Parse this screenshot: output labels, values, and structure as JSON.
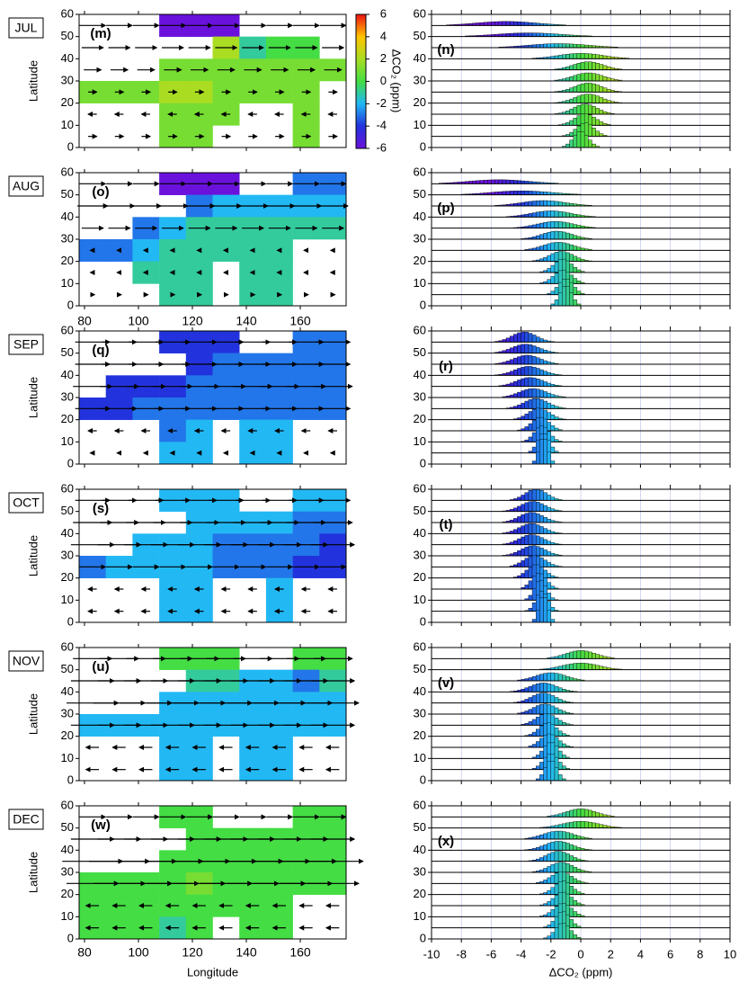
{
  "chart_data": {
    "type": "panel-grid",
    "map_axes": {
      "xlim": [
        78,
        177
      ],
      "xticks": [
        80,
        100,
        120,
        140,
        160
      ],
      "ylim": [
        0,
        60
      ],
      "yticks": [
        0,
        10,
        20,
        30,
        40,
        50,
        60
      ],
      "xlabel": "Longitude"
    },
    "hist_axes": {
      "xlim": [
        -10,
        10
      ],
      "xticks": [
        -10,
        -8,
        -6,
        -4,
        -2,
        0,
        2,
        4,
        6,
        8,
        10
      ],
      "ylim": [
        0,
        60
      ],
      "yticks": [
        0,
        10,
        20,
        30,
        40,
        50,
        60
      ],
      "xlabel": "ΔCO₂ (ppm)",
      "ridge_lats": [
        0,
        5,
        10,
        15,
        20,
        25,
        30,
        35,
        40,
        45,
        50,
        55
      ]
    },
    "colorbar": {
      "label": "ΔCO₂ (ppm)",
      "lim": [
        -6,
        6
      ],
      "ticks": [
        6,
        4,
        2,
        0,
        -2,
        -4,
        -6
      ],
      "colors": [
        "#6a12dc",
        "#2233dd",
        "#22b8f4",
        "#44dd44",
        "#aadd22",
        "#ffc400",
        "#ee1111"
      ]
    },
    "left_panels": [
      {
        "month": "JUL",
        "letter": "(m)",
        "ylabel": "Latitude",
        "grid": [
          [
            null,
            null,
            null,
            -6,
            -6,
            -6,
            null,
            null,
            null,
            null
          ],
          [
            null,
            null,
            null,
            null,
            null,
            2,
            -1,
            0,
            0,
            null
          ],
          [
            null,
            null,
            null,
            1,
            1,
            1,
            1,
            1,
            1,
            1
          ],
          [
            1,
            1,
            1,
            2,
            2,
            1,
            1,
            1,
            1,
            null
          ],
          [
            null,
            null,
            null,
            1,
            1,
            1,
            null,
            null,
            1,
            null
          ],
          [
            null,
            null,
            null,
            1,
            1,
            null,
            null,
            null,
            1,
            null
          ]
        ],
        "wind_u": [
          6,
          5,
          4,
          2,
          -2,
          2
        ]
      },
      {
        "month": "AUG",
        "letter": "(o)",
        "grid": [
          [
            null,
            null,
            null,
            -6,
            -6,
            -6,
            null,
            null,
            -3,
            -3
          ],
          [
            null,
            null,
            null,
            null,
            -3,
            -2,
            -2,
            -2,
            -2,
            -2
          ],
          [
            null,
            null,
            -3,
            -2,
            -1,
            -1,
            -1,
            -1,
            -1,
            -1
          ],
          [
            -3,
            -3,
            -2,
            -1,
            -1,
            -1,
            -1,
            -1,
            null,
            null
          ],
          [
            null,
            null,
            -1,
            -1,
            -1,
            null,
            -1,
            -1,
            null,
            null
          ],
          [
            null,
            null,
            null,
            -1,
            -1,
            null,
            -1,
            -1,
            null,
            null
          ]
        ],
        "wind_u": [
          6,
          7,
          5,
          -1,
          -1,
          1
        ]
      },
      {
        "month": "SEP",
        "letter": "(q)",
        "ylabel": "Latitude",
        "top_xticks": true,
        "grid": [
          [
            null,
            null,
            null,
            -4,
            -4,
            -4,
            null,
            null,
            -3,
            -3
          ],
          [
            null,
            null,
            null,
            null,
            -4,
            -3,
            -3,
            -3,
            -3,
            -3
          ],
          [
            null,
            -4,
            -4,
            -4,
            -3,
            -3,
            -3,
            -3,
            -3,
            -3
          ],
          [
            -4,
            -4,
            -3,
            -3,
            -3,
            -3,
            -3,
            -3,
            -3,
            -3
          ],
          [
            null,
            null,
            null,
            -3,
            -2,
            null,
            -2,
            -2,
            null,
            null
          ],
          [
            null,
            null,
            null,
            -2,
            -2,
            null,
            -2,
            -2,
            null,
            null
          ]
        ],
        "wind_u": [
          8,
          8,
          9,
          8,
          -2,
          -1
        ]
      },
      {
        "month": "OCT",
        "letter": "(s)",
        "ylabel": "Latitude",
        "grid": [
          [
            null,
            null,
            null,
            -2,
            -2,
            -2,
            null,
            null,
            -2,
            -2
          ],
          [
            null,
            null,
            null,
            null,
            -2,
            -2,
            -2,
            -2,
            -3,
            -3
          ],
          [
            null,
            null,
            -2,
            -2,
            -2,
            -3,
            -3,
            -3,
            -3,
            -4
          ],
          [
            -3,
            -2,
            -2,
            -2,
            -2,
            -3,
            -3,
            -3,
            -4,
            -4
          ],
          [
            null,
            null,
            null,
            -2,
            -2,
            null,
            null,
            -2,
            null,
            null
          ],
          [
            null,
            null,
            null,
            -2,
            -2,
            null,
            null,
            -2,
            null,
            null
          ]
        ],
        "wind_u": [
          8,
          9,
          10,
          6,
          -2,
          -2
        ]
      },
      {
        "month": "NOV",
        "letter": "(u)",
        "ylabel": "Latitude",
        "grid": [
          [
            null,
            null,
            null,
            0,
            0,
            0,
            null,
            null,
            0,
            0
          ],
          [
            null,
            null,
            null,
            null,
            -1,
            -1,
            -2,
            -2,
            -3,
            -1
          ],
          [
            null,
            null,
            null,
            -2,
            -2,
            -2,
            -2,
            -2,
            -2,
            -2
          ],
          [
            -2,
            -2,
            -2,
            -2,
            -2,
            -2,
            -2,
            -2,
            -2,
            -2
          ],
          [
            null,
            null,
            null,
            -2,
            -2,
            null,
            -2,
            -2,
            null,
            null
          ],
          [
            null,
            null,
            null,
            -2,
            -2,
            null,
            -2,
            -2,
            null,
            null
          ]
        ],
        "wind_u": [
          9,
          10,
          12,
          10,
          -3,
          -3
        ]
      },
      {
        "month": "DEC",
        "letter": "(w)",
        "ylabel": "Latitude",
        "bottom_xticks": true,
        "grid": [
          [
            null,
            null,
            null,
            0,
            0,
            null,
            null,
            null,
            0,
            0
          ],
          [
            null,
            null,
            null,
            null,
            0,
            0,
            0,
            0,
            0,
            0
          ],
          [
            null,
            null,
            null,
            0,
            0,
            0,
            0,
            0,
            0,
            0
          ],
          [
            0,
            0,
            0,
            0,
            1,
            0,
            0,
            0,
            0,
            0
          ],
          [
            0,
            0,
            0,
            0,
            0,
            0,
            0,
            0,
            null,
            null
          ],
          [
            0,
            0,
            0,
            -1,
            0,
            null,
            0,
            0,
            null,
            null
          ]
        ],
        "wind_u": [
          6,
          10,
          14,
          12,
          -3,
          -3
        ]
      }
    ],
    "right_panels": [
      {
        "letter": "(n)",
        "means": [
          0,
          0.3,
          0.3,
          0.3,
          0.5,
          0.5,
          0.5,
          0.5,
          0,
          -1.5,
          -3.5,
          -5
        ],
        "spreads": [
          0.5,
          0.6,
          0.7,
          0.8,
          0.9,
          0.9,
          1,
          1,
          1.5,
          2,
          2.2,
          2
        ]
      },
      {
        "letter": "(p)",
        "means": [
          -1,
          -1,
          -1.2,
          -1.2,
          -1.3,
          -1.5,
          -1.6,
          -1.7,
          -2,
          -2.5,
          -4,
          -5.5
        ],
        "spreads": [
          0.4,
          0.5,
          0.6,
          0.6,
          0.8,
          1,
          1,
          1.2,
          1.3,
          1.5,
          2,
          2
        ]
      },
      {
        "letter": "(r)",
        "means": [
          -2.5,
          -2.5,
          -2.6,
          -2.7,
          -2.8,
          -3,
          -3.2,
          -3.4,
          -3.5,
          -3.6,
          -3.7,
          -3.8
        ],
        "spreads": [
          0.3,
          0.4,
          0.5,
          0.6,
          0.7,
          0.8,
          0.9,
          0.9,
          0.9,
          0.9,
          0.9,
          0.8
        ]
      },
      {
        "letter": "(t)",
        "means": [
          -2.5,
          -2.6,
          -2.7,
          -2.8,
          -3,
          -3.1,
          -3.2,
          -3.3,
          -3.3,
          -3.3,
          -3.2,
          -3
        ],
        "spreads": [
          0.3,
          0.4,
          0.4,
          0.5,
          0.6,
          0.7,
          0.8,
          0.8,
          0.8,
          0.8,
          0.8,
          0.7
        ]
      },
      {
        "letter": "(v)",
        "means": [
          -2,
          -2,
          -2,
          -2.1,
          -2.2,
          -2.3,
          -2.4,
          -2.5,
          -2.5,
          -2,
          0,
          0
        ],
        "spreads": [
          0.4,
          0.5,
          0.5,
          0.6,
          0.6,
          0.7,
          0.8,
          0.8,
          0.9,
          1,
          1.2,
          1
        ]
      },
      {
        "letter": "(x)",
        "means": [
          -1.2,
          -1.2,
          -1.2,
          -1.2,
          -1.2,
          -1.3,
          -1.3,
          -1.5,
          -1.5,
          -1.5,
          0,
          0
        ],
        "spreads": [
          0.5,
          0.5,
          0.6,
          0.6,
          0.6,
          0.7,
          0.8,
          0.8,
          0.9,
          1,
          1.2,
          1
        ]
      }
    ]
  }
}
